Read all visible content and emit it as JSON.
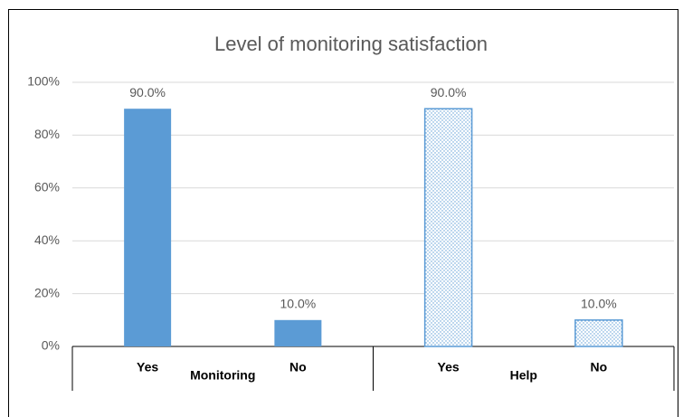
{
  "chart_data": {
    "type": "bar",
    "title": "Level of monitoring satisfaction",
    "categories": [
      "Yes",
      "No"
    ],
    "series": [
      {
        "name": "Monitoring",
        "color": "#5b9bd5",
        "pattern": "solid",
        "values": [
          90,
          10
        ],
        "value_labels": [
          "90.0%",
          "10.0%"
        ]
      },
      {
        "name": "Help",
        "color": "#5b9bd5",
        "pattern": "dots",
        "values": [
          90,
          10
        ],
        "value_labels": [
          "90.0%",
          "10.0%"
        ]
      }
    ],
    "ylim": [
      0,
      100
    ],
    "yticks": [
      {
        "value": 0,
        "label": "0%"
      },
      {
        "value": 20,
        "label": "20%"
      },
      {
        "value": 40,
        "label": "40%"
      },
      {
        "value": 60,
        "label": "60%"
      },
      {
        "value": 80,
        "label": "80%"
      },
      {
        "value": 100,
        "label": "100%"
      }
    ],
    "grid": true
  }
}
